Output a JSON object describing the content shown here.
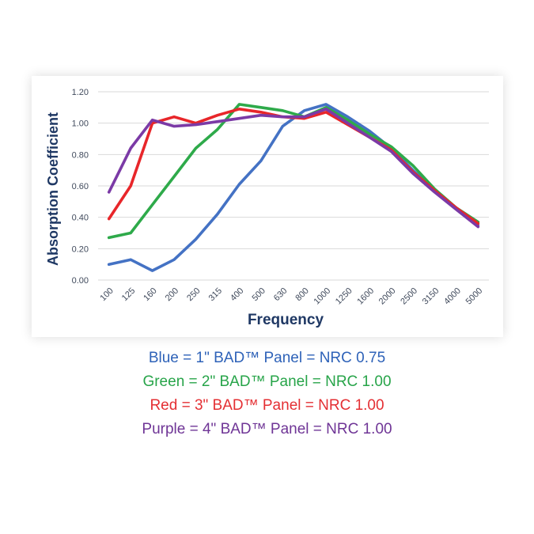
{
  "chart_data": {
    "type": "line",
    "xlabel": "Frequency",
    "ylabel": "Absorption Coefficient",
    "categories": [
      "100",
      "125",
      "160",
      "200",
      "250",
      "315",
      "400",
      "500",
      "630",
      "800",
      "1000",
      "1250",
      "1600",
      "2000",
      "2500",
      "3150",
      "4000",
      "5000"
    ],
    "yticks": [
      "0.00",
      "0.20",
      "0.40",
      "0.60",
      "0.80",
      "1.00",
      "1.20"
    ],
    "ylim": [
      0,
      1.2
    ],
    "grid": true,
    "series": [
      {
        "color": "#4472C4",
        "values": [
          0.1,
          0.13,
          0.06,
          0.13,
          0.26,
          0.42,
          0.61,
          0.76,
          0.98,
          1.08,
          1.12,
          1.04,
          0.95,
          0.84,
          0.7,
          0.57,
          0.46,
          0.35
        ]
      },
      {
        "color": "#2EAA4A",
        "values": [
          0.27,
          0.3,
          0.48,
          0.66,
          0.84,
          0.96,
          1.12,
          1.1,
          1.08,
          1.04,
          1.1,
          1.02,
          0.93,
          0.85,
          0.73,
          0.58,
          0.46,
          0.37
        ]
      },
      {
        "color": "#E8262A",
        "values": [
          0.39,
          0.6,
          1.0,
          1.04,
          1.0,
          1.05,
          1.09,
          1.07,
          1.04,
          1.03,
          1.07,
          0.99,
          0.91,
          0.83,
          0.69,
          0.57,
          0.46,
          0.36
        ]
      },
      {
        "color": "#7B3AA6",
        "values": [
          0.56,
          0.84,
          1.02,
          0.98,
          0.99,
          1.01,
          1.03,
          1.05,
          1.04,
          1.04,
          1.09,
          1.0,
          0.91,
          0.82,
          0.68,
          0.56,
          0.45,
          0.34
        ]
      }
    ]
  },
  "legend": [
    {
      "text": "Blue = 1\" BAD™ Panel = NRC 0.75",
      "color": "#2E62B8"
    },
    {
      "text": "Green = 2\" BAD™ Panel = NRC 1.00",
      "color": "#27A449"
    },
    {
      "text": "Red = 3\" BAD™ Panel = NRC 1.00",
      "color": "#E42F33"
    },
    {
      "text": "Purple = 4\" BAD™ Panel = NRC 1.00",
      "color": "#6F3596"
    }
  ]
}
